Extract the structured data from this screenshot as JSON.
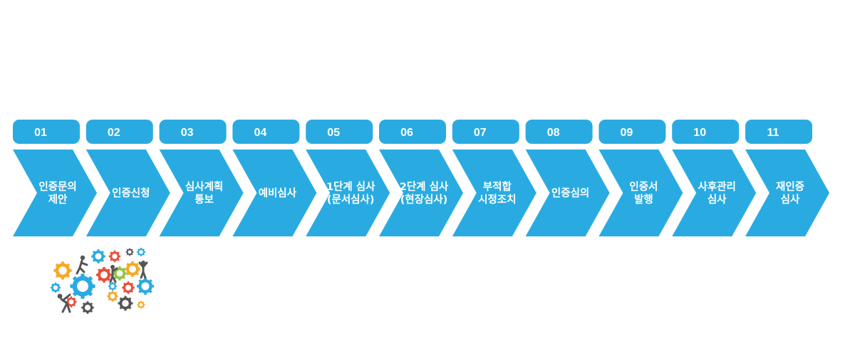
{
  "colors": {
    "accent": "#29abe2",
    "text": "#ffffff"
  },
  "steps": [
    {
      "num": "01",
      "lines": [
        "인증문의",
        "제안"
      ]
    },
    {
      "num": "02",
      "lines": [
        "인증신청"
      ]
    },
    {
      "num": "03",
      "lines": [
        "심사계획",
        "통보"
      ]
    },
    {
      "num": "04",
      "lines": [
        "예비심사"
      ]
    },
    {
      "num": "05",
      "lines": [
        "1단계 심사",
        "(문서심사)"
      ]
    },
    {
      "num": "06",
      "lines": [
        "2단계 심사",
        "(현장심사)"
      ]
    },
    {
      "num": "07",
      "lines": [
        "부적합",
        "시정조치"
      ]
    },
    {
      "num": "08",
      "lines": [
        "인증심의"
      ]
    },
    {
      "num": "09",
      "lines": [
        "인증서",
        "발행"
      ]
    },
    {
      "num": "10",
      "lines": [
        "사후관리",
        "심사"
      ]
    },
    {
      "num": "11",
      "lines": [
        "재인증",
        "심사"
      ]
    }
  ],
  "illustration": {
    "icon": "gears-with-people-icon"
  }
}
